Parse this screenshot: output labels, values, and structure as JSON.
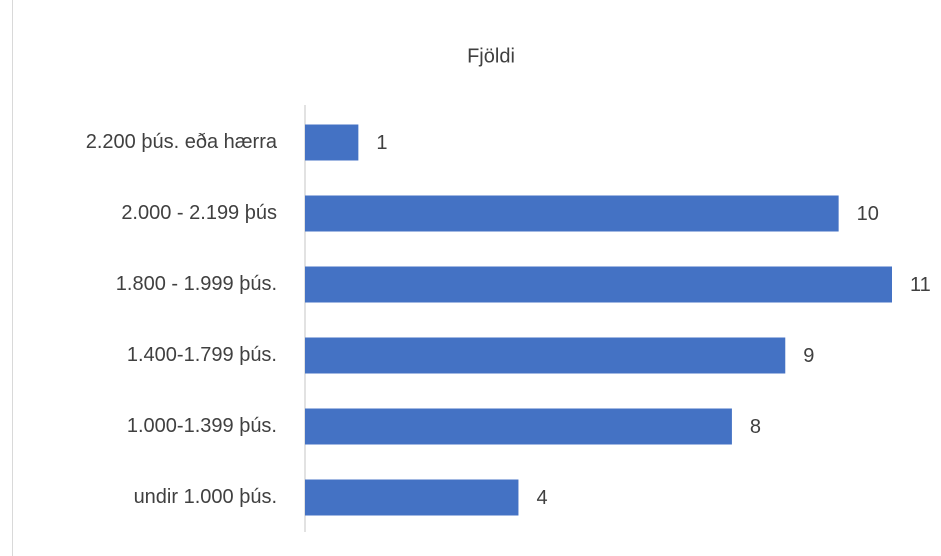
{
  "chart_data": {
    "type": "bar",
    "orientation": "horizontal",
    "title": "Fjöldi",
    "categories": [
      "2.200 þús. eða hærra",
      "2.000 - 2.199 þús",
      "1.800 - 1.999 þús.",
      "1.400-1.799 þús.",
      "1.000-1.399 þús.",
      "undir 1.000 þús."
    ],
    "values": [
      1,
      10,
      11,
      9,
      8,
      4
    ],
    "color": "#4472c4",
    "grid": false
  }
}
